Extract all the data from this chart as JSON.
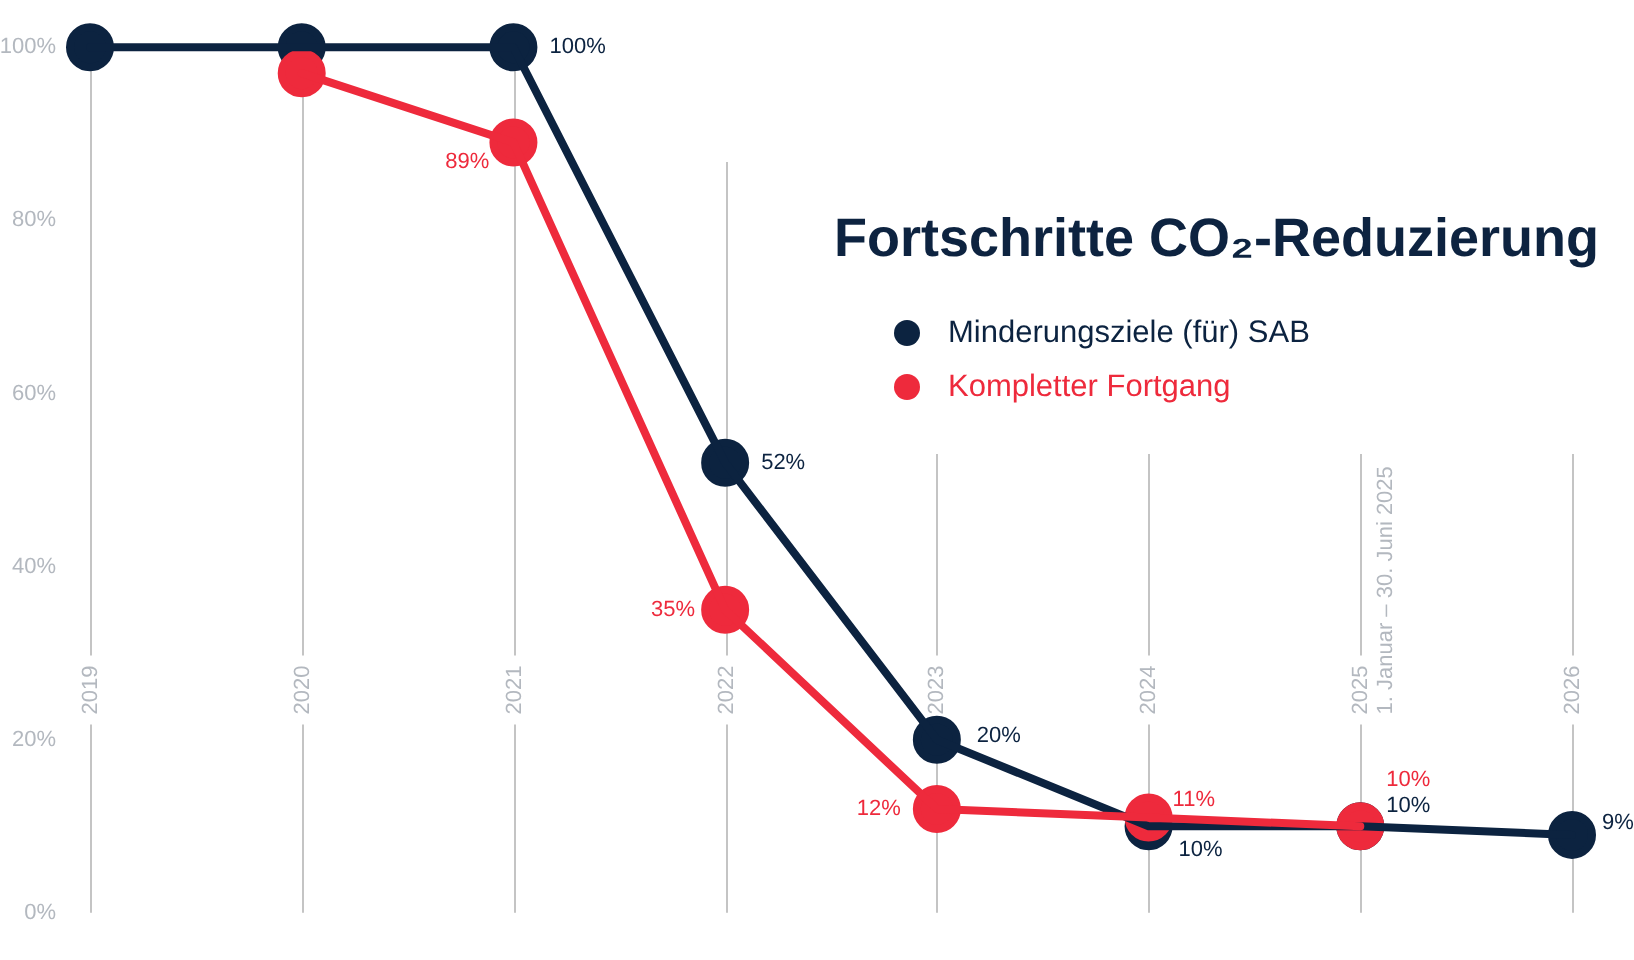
{
  "chart_data": {
    "type": "line",
    "title": "Fortschritte CO₂-Reduzierung",
    "categories": [
      "2019",
      "2020",
      "2021",
      "2022",
      "2023",
      "2024",
      "2025",
      "2026"
    ],
    "series": [
      {
        "name": "Minderungsziele (für) SAB",
        "color": "#0c2340",
        "values": [
          100,
          100,
          100,
          52,
          20,
          10,
          10,
          9
        ],
        "value_labels": [
          null,
          null,
          "100%",
          "52%",
          "20%",
          "10%",
          "10%",
          "9%"
        ]
      },
      {
        "name": "Kompletter Fortgang",
        "color": "#ee2a3c",
        "values": [
          null,
          97,
          89,
          35,
          12,
          11,
          10,
          null
        ],
        "value_labels": [
          null,
          null,
          "89%",
          "35%",
          "12%",
          "11%",
          "10%",
          null
        ]
      }
    ],
    "ylim": [
      0,
      100
    ],
    "yticks": [
      {
        "value": 0,
        "label": "0%"
      },
      {
        "value": 20,
        "label": "20%"
      },
      {
        "value": 40,
        "label": "40%"
      },
      {
        "value": 60,
        "label": "60%"
      },
      {
        "value": 80,
        "label": "80%"
      },
      {
        "value": 100,
        "label": "100%"
      }
    ],
    "grid": "x",
    "legend": "top right",
    "marker": "circle",
    "line_style": "solid",
    "annotations": [
      "1. Januar – 30. Juni 2025"
    ]
  }
}
